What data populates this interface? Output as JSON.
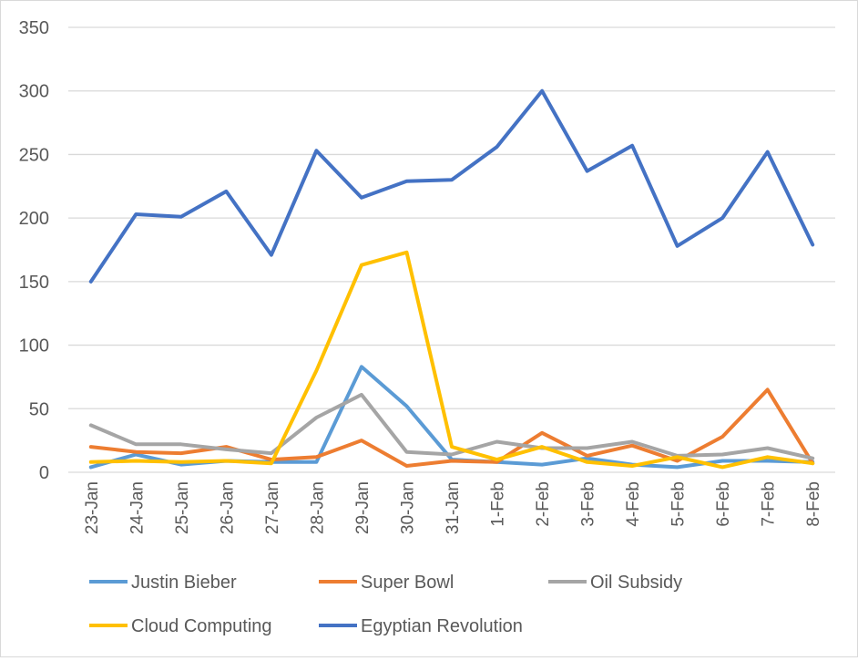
{
  "chart_data": {
    "type": "line",
    "title": "",
    "xlabel": "",
    "ylabel": "",
    "ylim": [
      0,
      350
    ],
    "yticks": [
      0,
      50,
      100,
      150,
      200,
      250,
      300,
      350
    ],
    "grid": true,
    "legend_position": "bottom",
    "categories": [
      "23-Jan",
      "24-Jan",
      "25-Jan",
      "26-Jan",
      "27-Jan",
      "28-Jan",
      "29-Jan",
      "30-Jan",
      "31-Jan",
      "1-Feb",
      "2-Feb",
      "3-Feb",
      "4-Feb",
      "5-Feb",
      "6-Feb",
      "7-Feb",
      "8-Feb"
    ],
    "series": [
      {
        "name": "Justin Bieber",
        "color": "#5b9bd5",
        "values": [
          4,
          14,
          6,
          9,
          8,
          8,
          83,
          52,
          10,
          8,
          6,
          11,
          6,
          4,
          9,
          9,
          8
        ]
      },
      {
        "name": "Super Bowl",
        "color": "#ed7d31",
        "values": [
          20,
          16,
          15,
          20,
          10,
          12,
          25,
          5,
          9,
          8,
          31,
          13,
          21,
          9,
          28,
          65,
          7
        ]
      },
      {
        "name": "Oil Subsidy",
        "color": "#a5a5a5",
        "values": [
          37,
          22,
          22,
          18,
          15,
          43,
          61,
          16,
          14,
          24,
          19,
          19,
          24,
          13,
          14,
          19,
          11
        ]
      },
      {
        "name": "Cloud Computing",
        "color": "#ffc000",
        "values": [
          8,
          9,
          8,
          9,
          7,
          80,
          163,
          173,
          20,
          10,
          20,
          8,
          5,
          12,
          4,
          12,
          7
        ]
      },
      {
        "name": "Egyptian Revolution",
        "color": "#4472c4",
        "values": [
          150,
          203,
          201,
          221,
          171,
          253,
          216,
          229,
          230,
          256,
          300,
          237,
          257,
          178,
          200,
          252,
          179
        ]
      }
    ]
  }
}
